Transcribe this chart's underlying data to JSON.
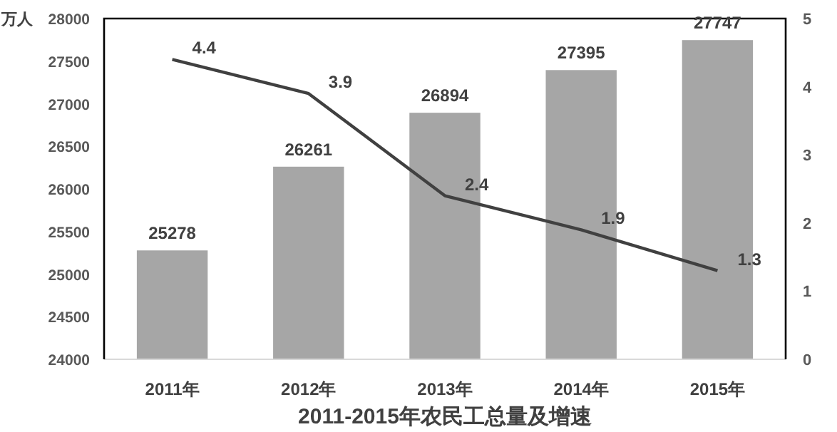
{
  "chart_data": {
    "type": "bar",
    "title": "2011-2015年农民工总量及增速",
    "ylabel": "万人",
    "categories": [
      "2011年",
      "2012年",
      "2013年",
      "2014年",
      "2015年"
    ],
    "series": [
      {
        "color": "#a6a6a6",
        "values": [
          25278,
          26261,
          26894,
          27395,
          27747
        ]
      },
      {
        "type": "line",
        "axis": "y2",
        "color": "#404040",
        "values": [
          4.4,
          3.9,
          2.4,
          1.9,
          1.3
        ]
      }
    ],
    "ylim": [
      24000,
      28000
    ],
    "yticks": [
      24000,
      24500,
      25000,
      25500,
      26000,
      26500,
      27000,
      27500,
      28000
    ],
    "y2lim": [
      0,
      5
    ],
    "y2ticks": [
      0,
      1,
      2,
      3,
      4,
      5
    ],
    "data_labels": true,
    "grid": false,
    "marker": "none",
    "line_style": "solid"
  }
}
